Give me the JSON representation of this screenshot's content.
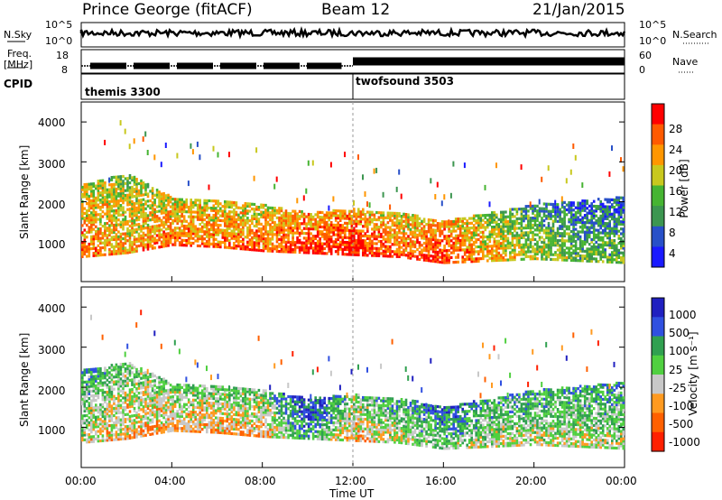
{
  "header": {
    "station": "Prince George (fitACF)",
    "beam": "Beam 12",
    "date": "21/Jan/2015"
  },
  "strip_labels": {
    "nsky": "N.Sky",
    "nsearch": "N.Search",
    "freq": "Freq.",
    "freq_unit": "[MHz]",
    "nave": "Nave",
    "cpid": "CPID",
    "nsky_ticks": [
      "10^5",
      "10^0"
    ],
    "nsearch_ticks": [
      "10^5",
      "10^0"
    ],
    "freq_ticks": [
      "18",
      "8"
    ],
    "nave_ticks": [
      "60",
      "0"
    ]
  },
  "cpid_blocks": [
    {
      "label": "themis 3300",
      "start": "00:00",
      "end": "12:00"
    },
    {
      "label": "twofsound 3503",
      "start": "12:00",
      "end": "24:00"
    }
  ],
  "colors": {
    "power": [
      "#1a1aff",
      "#2850c8",
      "#3c9650",
      "#46b432",
      "#c8c81e",
      "#ff9600",
      "#ff5a00",
      "#ff0000"
    ],
    "velocity": [
      "#2020c0",
      "#3050e0",
      "#30a050",
      "#50d040",
      "#c8c8c8",
      "#ff9a20",
      "#ff6000",
      "#ff2000"
    ]
  },
  "chart_data": [
    {
      "type": "heatmap",
      "panel": "power",
      "xlabel": "",
      "ylabel": "Slant Range [km]",
      "x_range_hours": [
        0,
        24
      ],
      "ylim": [
        0,
        4500
      ],
      "y_ticks": [
        "1000",
        "2000",
        "3000",
        "4000"
      ],
      "colorbar": {
        "label": "Power [dB]",
        "ticks": [
          "4",
          "8",
          "12",
          "16",
          "20",
          "24",
          "28"
        ]
      },
      "echo_band": [
        {
          "t": 0,
          "low": 600,
          "high": 2400,
          "level": 6
        },
        {
          "t": 2,
          "low": 700,
          "high": 2700,
          "level": 5
        },
        {
          "t": 4,
          "low": 900,
          "high": 2100,
          "level": 6
        },
        {
          "t": 6,
          "low": 850,
          "high": 2000,
          "level": 6
        },
        {
          "t": 8,
          "low": 750,
          "high": 1900,
          "level": 6
        },
        {
          "t": 10,
          "low": 700,
          "high": 1700,
          "level": 7
        },
        {
          "t": 12,
          "low": 650,
          "high": 1800,
          "level": 7
        },
        {
          "t": 14,
          "low": 600,
          "high": 1700,
          "level": 6
        },
        {
          "t": 16,
          "low": 450,
          "high": 1500,
          "level": 7
        },
        {
          "t": 18,
          "low": 500,
          "high": 1700,
          "level": 5
        },
        {
          "t": 20,
          "low": 550,
          "high": 1900,
          "level": 4
        },
        {
          "t": 22,
          "low": 500,
          "high": 2000,
          "level": 3
        },
        {
          "t": 24,
          "low": 450,
          "high": 2100,
          "level": 3
        }
      ]
    },
    {
      "type": "heatmap",
      "panel": "velocity",
      "xlabel": "Time UT",
      "ylabel": "Slant Range [km]",
      "x_range_hours": [
        0,
        24
      ],
      "ylim": [
        0,
        4500
      ],
      "y_ticks": [
        "1000",
        "2000",
        "3000",
        "4000"
      ],
      "x_ticks": [
        "00:00",
        "04:00",
        "08:00",
        "12:00",
        "16:00",
        "20:00",
        "00:00"
      ],
      "colorbar": {
        "label": "Velocity [m s⁻¹]",
        "ticks": [
          "1000",
          "500",
          "100",
          "25",
          "-25",
          "-100",
          "-500",
          "-1000"
        ]
      },
      "echo_band": [
        {
          "t": 0,
          "low": 600,
          "high": 2400,
          "level": 4
        },
        {
          "t": 2,
          "low": 700,
          "high": 2600,
          "level": 5
        },
        {
          "t": 4,
          "low": 900,
          "high": 2100,
          "level": 5
        },
        {
          "t": 6,
          "low": 850,
          "high": 2000,
          "level": 5
        },
        {
          "t": 8,
          "low": 750,
          "high": 1900,
          "level": 5
        },
        {
          "t": 10,
          "low": 700,
          "high": 1700,
          "level": 2
        },
        {
          "t": 12,
          "low": 650,
          "high": 1800,
          "level": 5
        },
        {
          "t": 14,
          "low": 600,
          "high": 1700,
          "level": 4
        },
        {
          "t": 16,
          "low": 450,
          "high": 1500,
          "level": 3
        },
        {
          "t": 18,
          "low": 500,
          "high": 1700,
          "level": 4
        },
        {
          "t": 20,
          "low": 550,
          "high": 1900,
          "level": 4
        },
        {
          "t": 22,
          "low": 500,
          "high": 2000,
          "level": 4
        },
        {
          "t": 24,
          "low": 450,
          "high": 2100,
          "level": 4
        }
      ]
    }
  ]
}
